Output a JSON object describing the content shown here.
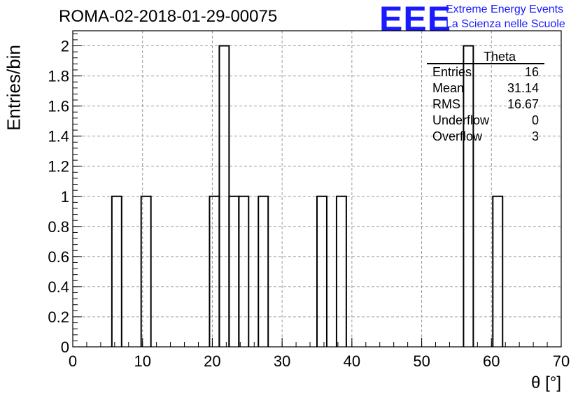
{
  "header": {
    "title": "ROMA-02-2018-01-29-00075"
  },
  "logo": {
    "mark": "EEE",
    "line1": "Extreme Energy Events",
    "line2": "La Scienza nelle Scuole"
  },
  "stats_box": {
    "title": "Theta",
    "rows": [
      {
        "label": "Entries",
        "value": "16"
      },
      {
        "label": "Mean",
        "value": "31.14"
      },
      {
        "label": "RMS",
        "value": "16.67"
      },
      {
        "label": "Underflow",
        "value": "0"
      },
      {
        "label": "Overflow",
        "value": "3"
      }
    ]
  },
  "chart_data": {
    "type": "bar",
    "histogram": true,
    "title": "ROMA-02-2018-01-29-00075",
    "xlabel": "θ [°]",
    "ylabel": "Entries/bin",
    "xlim": [
      0,
      70
    ],
    "ylim": [
      0,
      2.1
    ],
    "grid": true,
    "bin_width": 1.4,
    "x_ticks": [
      "0",
      "10",
      "20",
      "30",
      "40",
      "50",
      "60",
      "70"
    ],
    "y_ticks": [
      "0",
      "0.2",
      "0.4",
      "0.6",
      "0.8",
      "1",
      "1.2",
      "1.4",
      "1.6",
      "1.8",
      "2"
    ],
    "bins": [
      {
        "x_low": 5.6,
        "x_high": 7.0,
        "count": 1
      },
      {
        "x_low": 9.8,
        "x_high": 11.2,
        "count": 1
      },
      {
        "x_low": 19.6,
        "x_high": 21.0,
        "count": 1
      },
      {
        "x_low": 21.0,
        "x_high": 22.4,
        "count": 2
      },
      {
        "x_low": 22.4,
        "x_high": 23.8,
        "count": 1
      },
      {
        "x_low": 23.8,
        "x_high": 25.2,
        "count": 1
      },
      {
        "x_low": 26.6,
        "x_high": 28.0,
        "count": 1
      },
      {
        "x_low": 35.0,
        "x_high": 36.4,
        "count": 1
      },
      {
        "x_low": 37.8,
        "x_high": 39.2,
        "count": 1
      },
      {
        "x_low": 56.0,
        "x_high": 57.4,
        "count": 2
      },
      {
        "x_low": 60.2,
        "x_high": 61.6,
        "count": 1
      }
    ],
    "stats": {
      "entries": 16,
      "mean": 31.14,
      "rms": 16.67,
      "underflow": 0,
      "overflow": 3
    },
    "colors": {
      "line": "#000000",
      "grid": "#9a9a9a",
      "logo": "#1a1aff"
    }
  }
}
